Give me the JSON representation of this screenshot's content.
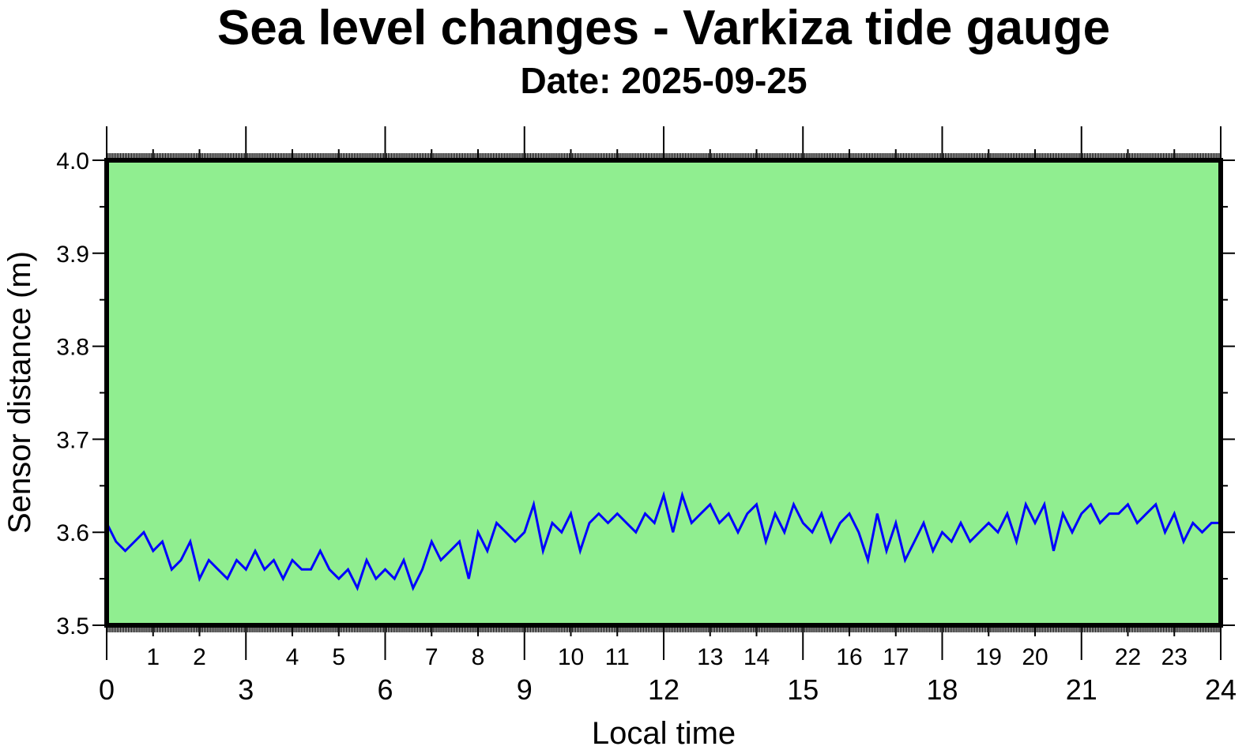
{
  "chart_data": {
    "type": "line",
    "title": "Sea level changes - Varkiza tide gauge",
    "subtitle": "Date: 2025-09-25",
    "xlabel": "Local time",
    "ylabel": "Sensor distance (m)",
    "xlim": [
      0,
      24
    ],
    "ylim": [
      3.5,
      4.0
    ],
    "yticks": [
      "3.5",
      "3.6",
      "3.7",
      "3.8",
      "3.9",
      "4.0"
    ],
    "xticks_major": [
      "0",
      "3",
      "6",
      "9",
      "12",
      "15",
      "18",
      "21",
      "24"
    ],
    "xticks_minor": [
      "1",
      "2",
      "4",
      "5",
      "7",
      "8",
      "10",
      "11",
      "13",
      "14",
      "16",
      "17",
      "19",
      "20",
      "22",
      "23"
    ],
    "grid": false,
    "colors": {
      "background": "#90ee90",
      "line": "#0000ff",
      "frame": "#000000"
    },
    "series": [
      {
        "x_step_hours": 0.2,
        "values": [
          3.61,
          3.59,
          3.58,
          3.59,
          3.6,
          3.58,
          3.59,
          3.56,
          3.57,
          3.59,
          3.55,
          3.57,
          3.56,
          3.55,
          3.57,
          3.56,
          3.58,
          3.56,
          3.57,
          3.55,
          3.57,
          3.56,
          3.56,
          3.58,
          3.56,
          3.55,
          3.56,
          3.54,
          3.57,
          3.55,
          3.56,
          3.55,
          3.57,
          3.54,
          3.56,
          3.59,
          3.57,
          3.58,
          3.59,
          3.55,
          3.6,
          3.58,
          3.61,
          3.6,
          3.59,
          3.6,
          3.63,
          3.58,
          3.61,
          3.6,
          3.62,
          3.58,
          3.61,
          3.62,
          3.61,
          3.62,
          3.61,
          3.6,
          3.62,
          3.61,
          3.64,
          3.6,
          3.64,
          3.61,
          3.62,
          3.63,
          3.61,
          3.62,
          3.6,
          3.62,
          3.63,
          3.59,
          3.62,
          3.6,
          3.63,
          3.61,
          3.6,
          3.62,
          3.59,
          3.61,
          3.62,
          3.6,
          3.57,
          3.62,
          3.58,
          3.61,
          3.57,
          3.59,
          3.61,
          3.58,
          3.6,
          3.59,
          3.61,
          3.59,
          3.6,
          3.61,
          3.6,
          3.62,
          3.59,
          3.63,
          3.61,
          3.63,
          3.58,
          3.62,
          3.6,
          3.62,
          3.63,
          3.61,
          3.62,
          3.62,
          3.63,
          3.61,
          3.62,
          3.63,
          3.6,
          3.62,
          3.59,
          3.61,
          3.6,
          3.61,
          3.61
        ]
      }
    ]
  }
}
